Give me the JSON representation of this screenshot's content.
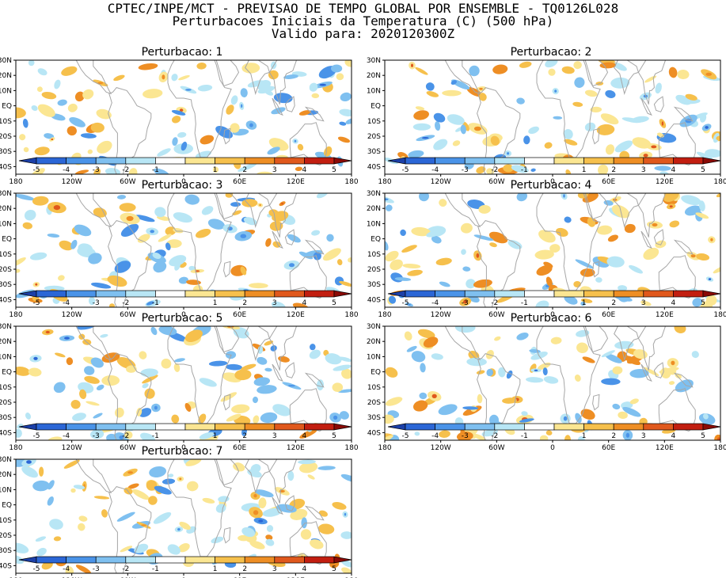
{
  "header": {
    "line1": "CPTEC/INPE/MCT - PREVISAO DE TEMPO GLOBAL POR ENSEMBLE - TQ0126L028",
    "line2": "Perturbacoes Iniciais da Temperatura (C) (500 hPa)",
    "line3": "Valido para: 2020120300Z"
  },
  "latitude_labels": [
    "30N",
    "20N",
    "10N",
    "EQ",
    "10S",
    "20S",
    "30S",
    "40S"
  ],
  "longitude_labels": [
    "180",
    "120W",
    "60W",
    "0",
    "60E",
    "120E",
    "180"
  ],
  "colorbar": {
    "labels": [
      "-5",
      "-4",
      "-3",
      "-2",
      "-1",
      "1",
      "2",
      "3",
      "4",
      "5"
    ],
    "colors": [
      "#1b3fa8",
      "#2b66d6",
      "#4a93e8",
      "#7fc0f0",
      "#b8e6f5",
      "#ffffff",
      "#fbe692",
      "#f6c04c",
      "#ee8e24",
      "#e0581c",
      "#c21e10",
      "#8a0a06"
    ]
  },
  "panels": [
    {
      "title": "Perturbacao: 1"
    },
    {
      "title": "Perturbacao: 2"
    },
    {
      "title": "Perturbacao: 3"
    },
    {
      "title": "Perturbacao: 4"
    },
    {
      "title": "Perturbacao: 5"
    },
    {
      "title": "Perturbacao: 6"
    },
    {
      "title": "Perturbacao: 7"
    }
  ]
}
